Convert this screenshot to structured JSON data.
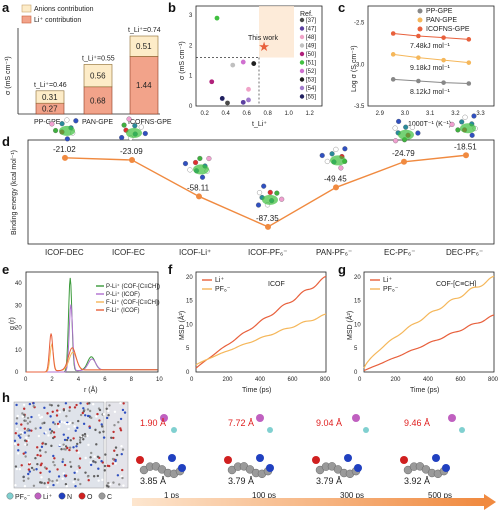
{
  "figure": {
    "panel_labels": [
      "a",
      "b",
      "c",
      "d",
      "e",
      "f",
      "g",
      "h"
    ]
  },
  "panel_a": {
    "legend": [
      "Anions contribution",
      "Li⁺ contribution"
    ],
    "ylabel": "σ (mS cm⁻¹)",
    "categories": [
      "PP-GPE",
      "PAN-GPE",
      "ICOFNS-GPE"
    ],
    "li_contribution": [
      0.27,
      0.68,
      1.44
    ],
    "anion_contribution": [
      0.31,
      0.56,
      0.51
    ],
    "t_labels": [
      "t_Li⁺=0.46",
      "t_Li⁺=0.55",
      "t_Li⁺=0.74"
    ],
    "colors": {
      "anion": "#fdecc8",
      "li": "#f2a38a",
      "li_dark": "#e8603c"
    }
  },
  "panel_b": {
    "ylabel": "σ (mS cm⁻¹)",
    "xlabel": "t_Li⁺",
    "xticks": [
      "0.2",
      "0.4",
      "0.6",
      "0.8",
      "1.0",
      "1.2"
    ],
    "yticks": [
      "0",
      "1",
      "2",
      "3"
    ],
    "this_work_label": "This work",
    "legend_title": "Ref.",
    "refs": [
      "[37]",
      "[47]",
      "[48]",
      "[49]",
      "[50]",
      "[51]",
      "[52]",
      "[53]",
      "[54]",
      "[55]"
    ],
    "points": [
      {
        "x": 0.4,
        "y": 0.1,
        "c": "#4a4a4a"
      },
      {
        "x": 0.55,
        "y": 0.12,
        "c": "#5b3fa0"
      },
      {
        "x": 0.6,
        "y": 0.55,
        "c": "#f0a3c8"
      },
      {
        "x": 0.45,
        "y": 1.35,
        "c": "#c0c0c0"
      },
      {
        "x": 0.25,
        "y": 0.8,
        "c": "#b0207a"
      },
      {
        "x": 0.3,
        "y": 2.9,
        "c": "#40c040"
      },
      {
        "x": 0.55,
        "y": 1.45,
        "c": "#d070d0"
      },
      {
        "x": 0.65,
        "y": 1.4,
        "c": "#202020"
      },
      {
        "x": 0.6,
        "y": 0.2,
        "c": "#a07acc"
      },
      {
        "x": 0.35,
        "y": 0.25,
        "c": "#202060"
      }
    ],
    "this_work": {
      "x": 0.74,
      "y": 1.95
    }
  },
  "panel_c": {
    "ylabel": "Log σ (S cm⁻¹)",
    "xlabel": "1000T⁻¹ (K⁻¹)",
    "legend": [
      "PP-GPE",
      "PAN-GPE",
      "ICOFNS-GPE"
    ],
    "xticks": [
      "2.9",
      "3.0",
      "3.1",
      "3.2",
      "3.3"
    ],
    "yticks": [
      "-2.5",
      "-3.0",
      "-3.5"
    ],
    "ea_labels": [
      "7.48kJ mol⁻¹",
      "9.18kJ mol⁻¹",
      "8.12kJ mol⁻¹"
    ],
    "series": [
      {
        "name": "PP-GPE",
        "color": "#888888",
        "x": [
          2.95,
          3.05,
          3.15,
          3.25
        ],
        "y": [
          -3.18,
          -3.2,
          -3.22,
          -3.23
        ]
      },
      {
        "name": "PAN-GPE",
        "color": "#f5b75a",
        "x": [
          2.95,
          3.05,
          3.15,
          3.25
        ],
        "y": [
          -2.88,
          -2.92,
          -2.95,
          -2.98
        ]
      },
      {
        "name": "ICOFNS-GPE",
        "color": "#e8603c",
        "x": [
          2.95,
          3.05,
          3.15,
          3.25
        ],
        "y": [
          -2.63,
          -2.66,
          -2.68,
          -2.7
        ]
      }
    ]
  },
  "panel_d": {
    "ylabel": "Binding energy (kcal mol⁻¹)",
    "categories": [
      "ICOF-DEC",
      "ICOF-EC",
      "ICOF-Li⁺",
      "ICOF-PF₆⁻",
      "PAN-PF₆⁻",
      "EC-PF₆⁻",
      "DEC-PF₆⁻"
    ],
    "values": [
      -21.02,
      -23.09,
      -58.11,
      -87.35,
      -49.45,
      -24.79,
      -18.51
    ],
    "labels": [
      "-21.02",
      "-23.09",
      "-58.11",
      "-87.35",
      "-49.45",
      "-24.79",
      "-18.51"
    ]
  },
  "panel_e": {
    "ylabel": "g (r)",
    "xlabel": "r (Å)",
    "xticks": [
      "0",
      "2",
      "4",
      "6",
      "8",
      "10"
    ],
    "yticks": [
      "0",
      "10",
      "20",
      "30",
      "40"
    ],
    "legend": [
      "P-Li⁺ (COF-[C≡CH])",
      "P-Li⁺ (ICOF)",
      "F-Li⁺ (COF-[C≡CH])",
      "F-Li⁺ (ICOF)"
    ],
    "colors": [
      "#3a9a3a",
      "#b070d0",
      "#f5b75a",
      "#e8603c"
    ]
  },
  "panel_f": {
    "ylabel": "MSD (Å²)",
    "xlabel": "Time (ps)",
    "title": "ICOF",
    "legend": [
      "Li⁺",
      "PF₆⁻"
    ],
    "xticks": [
      "0",
      "200",
      "400",
      "600",
      "800"
    ],
    "yticks": [
      "0",
      "5",
      "10",
      "15",
      "20"
    ]
  },
  "panel_g": {
    "ylabel": "MSD (Å²)",
    "xlabel": "Time (ps)",
    "title": "COF-[C≡CH]",
    "legend": [
      "Li⁺",
      "PF₆⁻"
    ],
    "xticks": [
      "0",
      "200",
      "400",
      "600",
      "800"
    ],
    "yticks": [
      "0",
      "5",
      "10",
      "15",
      "20"
    ]
  },
  "panel_h": {
    "legend": [
      "PF₆⁻",
      "Li⁺",
      "N",
      "O",
      "C"
    ],
    "times": [
      "1 ps",
      "100 ps",
      "300 ps",
      "500 ps"
    ],
    "red_distances": [
      "1.90 Å",
      "7.72 Å",
      "9.04 Å",
      "9.46 Å"
    ],
    "black_distances": [
      "3.85 Å",
      "3.79 Å",
      "3.79 Å",
      "3.92 Å"
    ]
  }
}
